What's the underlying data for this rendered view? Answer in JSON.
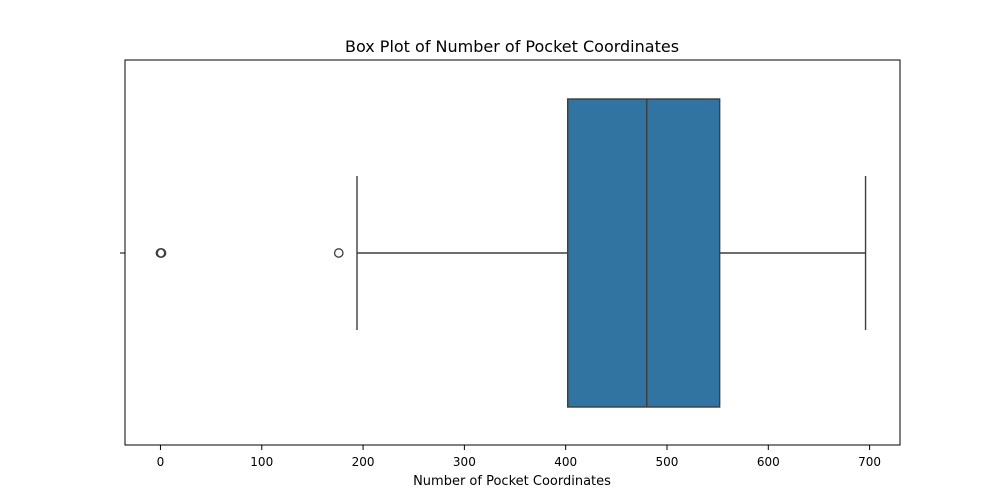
{
  "chart_data": {
    "type": "box",
    "title": "Box Plot of Number of Pocket Coordinates",
    "xlabel": "Number of Pocket Coordinates",
    "ylabel": "",
    "orientation": "horizontal",
    "xlim": [
      -35,
      730
    ],
    "xticks": [
      0,
      100,
      200,
      300,
      400,
      500,
      600,
      700
    ],
    "xtick_labels": [
      "0",
      "100",
      "200",
      "300",
      "400",
      "500",
      "600",
      "700"
    ],
    "grid": false,
    "box": {
      "whisker_low": 194,
      "q1": 402,
      "median": 480,
      "q3": 552,
      "whisker_high": 696,
      "outliers": [
        0,
        1,
        176
      ]
    },
    "colors": {
      "box_fill": "#3274a1",
      "line": "#3d3d3d"
    }
  }
}
